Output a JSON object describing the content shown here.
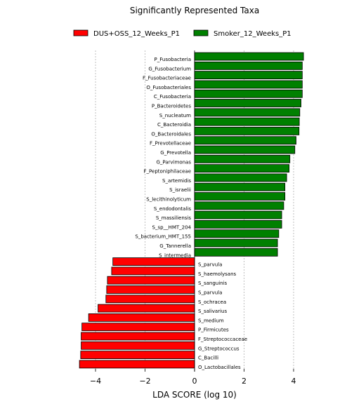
{
  "chart_data": {
    "type": "bar",
    "orientation": "horizontal",
    "title": "Significantly Represented Taxa",
    "xlabel": "LDA SCORE (log 10)",
    "ylabel": "",
    "xlim": [
      -4.7,
      4.7
    ],
    "xticks": [
      -4,
      -2,
      0,
      2,
      4
    ],
    "xtick_labels": [
      "−4",
      "−2",
      "0",
      "2",
      "4"
    ],
    "grid": "vertical dotted lines at x ticks",
    "legend_position": "top-center",
    "series": [
      {
        "name": "DUS+OSS_12_Weeks_P1",
        "color": "#ff0000",
        "categories": [
          "S_parvula",
          "S_haemolysans",
          "S_sanguinis",
          "S_parvula",
          "S_ochracea",
          "S_salivarius",
          "S_medium",
          "P_Firmicutes",
          "F_Streptococcaceae",
          "G_Streptococcus",
          "C_Bacilli",
          "O_Lactobacillales"
        ],
        "values": [
          -3.3,
          -3.35,
          -3.52,
          -3.55,
          -3.58,
          -3.9,
          -4.28,
          -4.55,
          -4.58,
          -4.58,
          -4.6,
          -4.65
        ]
      },
      {
        "name": "Smoker_12_Weeks_P1",
        "color": "#008000",
        "categories": [
          "P_Fusobacteria",
          "G_Fusobacterium",
          "F_Fusobacteriaceae",
          "O_Fusobacteriales",
          "C_Fusobacteria",
          "P_Bacteroidetes",
          "S_nucleatum",
          "C_Bacteroidia",
          "O_Bacteroidales",
          "F_Prevotellaceae",
          "G_Prevotella",
          "G_Parvimonas",
          "F_Peptoniphilaceae",
          "S_artemidis",
          "S_israelii",
          "S_lecithinolyticum",
          "S_endodontalis",
          "S_massiliensis",
          "S_sp__HMT_204",
          "S_bacterium_HMT_155",
          "G_Tannerella",
          "S_intermedia"
        ],
        "values": [
          4.4,
          4.35,
          4.35,
          4.35,
          4.35,
          4.3,
          4.25,
          4.23,
          4.22,
          4.1,
          4.05,
          3.85,
          3.82,
          3.72,
          3.65,
          3.65,
          3.6,
          3.52,
          3.52,
          3.4,
          3.35,
          3.35
        ]
      }
    ]
  }
}
